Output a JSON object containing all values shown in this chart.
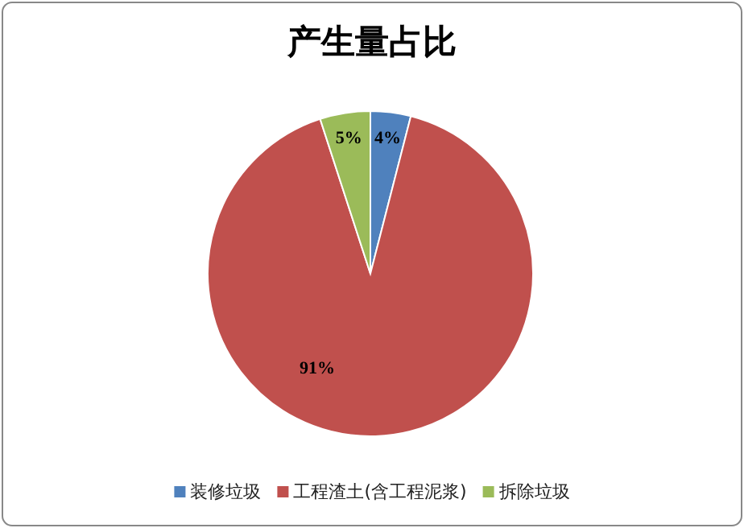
{
  "chart_data": {
    "type": "pie",
    "title": "产生量占比",
    "categories": [
      "装修垃圾",
      "工程渣土(含工程泥浆)",
      "拆除垃圾"
    ],
    "values": [
      4,
      91,
      5
    ],
    "value_labels": [
      "4%",
      "91%",
      "5%"
    ],
    "colors": [
      "#4f81bd",
      "#c0504d",
      "#9bbb59"
    ],
    "legend": "bottom"
  }
}
